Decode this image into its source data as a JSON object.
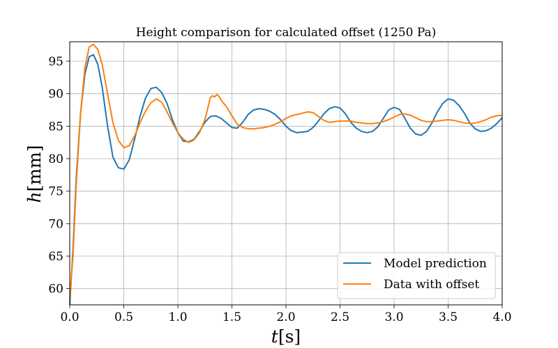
{
  "chart_data": {
    "type": "line",
    "title": "Height comparison for calculated offset (1250 Pa)",
    "xlabel": {
      "var": "t",
      "unit": "[s]"
    },
    "ylabel": {
      "var": "h",
      "unit": "[mm]"
    },
    "xlim": [
      0.0,
      4.0
    ],
    "ylim": [
      57.5,
      98.0
    ],
    "xticks": [
      0.0,
      0.5,
      1.0,
      1.5,
      2.0,
      2.5,
      3.0,
      3.5,
      4.0
    ],
    "xtick_labels": [
      "0.0",
      "0.5",
      "1.0",
      "1.5",
      "2.0",
      "2.5",
      "3.0",
      "3.5",
      "4.0"
    ],
    "yticks": [
      60,
      65,
      70,
      75,
      80,
      85,
      90,
      95
    ],
    "ytick_labels": [
      "60",
      "65",
      "70",
      "75",
      "80",
      "85",
      "90",
      "95"
    ],
    "grid": true,
    "legend_position": "bottom-right",
    "series": [
      {
        "name": "Model prediction",
        "color": "#1f77b4",
        "points": [
          [
            0.0,
            57.5
          ],
          [
            0.03,
            66
          ],
          [
            0.06,
            77
          ],
          [
            0.1,
            87
          ],
          [
            0.14,
            93
          ],
          [
            0.18,
            95.7
          ],
          [
            0.22,
            96.0
          ],
          [
            0.26,
            94.5
          ],
          [
            0.3,
            91
          ],
          [
            0.35,
            85
          ],
          [
            0.4,
            80.2
          ],
          [
            0.45,
            78.6
          ],
          [
            0.5,
            78.4
          ],
          [
            0.55,
            79.8
          ],
          [
            0.6,
            83
          ],
          [
            0.65,
            86.5
          ],
          [
            0.7,
            89.3
          ],
          [
            0.75,
            90.8
          ],
          [
            0.8,
            91.0
          ],
          [
            0.85,
            90.2
          ],
          [
            0.9,
            88.5
          ],
          [
            0.95,
            86.0
          ],
          [
            1.0,
            84.0
          ],
          [
            1.05,
            82.7
          ],
          [
            1.1,
            82.6
          ],
          [
            1.15,
            83.0
          ],
          [
            1.2,
            84.2
          ],
          [
            1.25,
            85.6
          ],
          [
            1.3,
            86.5
          ],
          [
            1.35,
            86.6
          ],
          [
            1.4,
            86.2
          ],
          [
            1.45,
            85.5
          ],
          [
            1.5,
            84.8
          ],
          [
            1.55,
            84.7
          ],
          [
            1.6,
            85.6
          ],
          [
            1.65,
            86.8
          ],
          [
            1.7,
            87.5
          ],
          [
            1.75,
            87.7
          ],
          [
            1.8,
            87.6
          ],
          [
            1.85,
            87.3
          ],
          [
            1.9,
            86.8
          ],
          [
            1.95,
            86.0
          ],
          [
            2.0,
            85.0
          ],
          [
            2.05,
            84.3
          ],
          [
            2.1,
            84.0
          ],
          [
            2.15,
            84.1
          ],
          [
            2.2,
            84.2
          ],
          [
            2.25,
            84.8
          ],
          [
            2.3,
            85.8
          ],
          [
            2.35,
            86.9
          ],
          [
            2.4,
            87.7
          ],
          [
            2.45,
            88.0
          ],
          [
            2.5,
            87.8
          ],
          [
            2.55,
            86.9
          ],
          [
            2.6,
            85.6
          ],
          [
            2.65,
            84.7
          ],
          [
            2.7,
            84.2
          ],
          [
            2.75,
            84.0
          ],
          [
            2.8,
            84.2
          ],
          [
            2.85,
            84.9
          ],
          [
            2.9,
            86.2
          ],
          [
            2.95,
            87.5
          ],
          [
            3.0,
            87.9
          ],
          [
            3.05,
            87.6
          ],
          [
            3.1,
            86.2
          ],
          [
            3.15,
            84.7
          ],
          [
            3.2,
            83.8
          ],
          [
            3.25,
            83.6
          ],
          [
            3.3,
            84.2
          ],
          [
            3.35,
            85.5
          ],
          [
            3.4,
            87.2
          ],
          [
            3.45,
            88.5
          ],
          [
            3.5,
            89.2
          ],
          [
            3.55,
            89.0
          ],
          [
            3.6,
            88.2
          ],
          [
            3.65,
            87.0
          ],
          [
            3.7,
            85.5
          ],
          [
            3.75,
            84.6
          ],
          [
            3.8,
            84.2
          ],
          [
            3.85,
            84.3
          ],
          [
            3.9,
            84.7
          ],
          [
            3.95,
            85.4
          ],
          [
            4.0,
            86.3
          ]
        ]
      },
      {
        "name": "Data with offset",
        "color": "#ff7f0e",
        "points": [
          [
            0.0,
            58.5
          ],
          [
            0.03,
            65
          ],
          [
            0.06,
            76
          ],
          [
            0.1,
            87
          ],
          [
            0.14,
            94
          ],
          [
            0.18,
            97.2
          ],
          [
            0.22,
            97.6
          ],
          [
            0.26,
            96.8
          ],
          [
            0.3,
            94.5
          ],
          [
            0.35,
            90
          ],
          [
            0.4,
            85.5
          ],
          [
            0.45,
            82.8
          ],
          [
            0.5,
            81.7
          ],
          [
            0.55,
            82.0
          ],
          [
            0.6,
            83.5
          ],
          [
            0.65,
            85.5
          ],
          [
            0.7,
            87.3
          ],
          [
            0.75,
            88.6
          ],
          [
            0.8,
            89.2
          ],
          [
            0.85,
            88.7
          ],
          [
            0.9,
            87.2
          ],
          [
            0.95,
            85.5
          ],
          [
            1.0,
            84.0
          ],
          [
            1.05,
            83.0
          ],
          [
            1.1,
            82.5
          ],
          [
            1.15,
            82.9
          ],
          [
            1.2,
            84.0
          ],
          [
            1.25,
            86.0
          ],
          [
            1.28,
            88.0
          ],
          [
            1.3,
            89.4
          ],
          [
            1.32,
            89.7
          ],
          [
            1.34,
            89.5
          ],
          [
            1.36,
            89.9
          ],
          [
            1.38,
            89.6
          ],
          [
            1.4,
            89.0
          ],
          [
            1.45,
            88.0
          ],
          [
            1.5,
            86.6
          ],
          [
            1.55,
            85.3
          ],
          [
            1.6,
            84.8
          ],
          [
            1.65,
            84.6
          ],
          [
            1.7,
            84.6
          ],
          [
            1.75,
            84.7
          ],
          [
            1.8,
            84.8
          ],
          [
            1.85,
            85.0
          ],
          [
            1.9,
            85.3
          ],
          [
            1.95,
            85.7
          ],
          [
            2.0,
            86.2
          ],
          [
            2.05,
            86.6
          ],
          [
            2.1,
            86.8
          ],
          [
            2.15,
            87.0
          ],
          [
            2.2,
            87.2
          ],
          [
            2.25,
            87.1
          ],
          [
            2.3,
            86.5
          ],
          [
            2.35,
            85.9
          ],
          [
            2.4,
            85.6
          ],
          [
            2.45,
            85.7
          ],
          [
            2.5,
            85.8
          ],
          [
            2.55,
            85.8
          ],
          [
            2.6,
            85.8
          ],
          [
            2.65,
            85.6
          ],
          [
            2.7,
            85.5
          ],
          [
            2.75,
            85.4
          ],
          [
            2.8,
            85.4
          ],
          [
            2.85,
            85.5
          ],
          [
            2.9,
            85.7
          ],
          [
            2.95,
            86.0
          ],
          [
            3.0,
            86.4
          ],
          [
            3.05,
            86.8
          ],
          [
            3.1,
            86.9
          ],
          [
            3.15,
            86.7
          ],
          [
            3.2,
            86.3
          ],
          [
            3.25,
            85.9
          ],
          [
            3.3,
            85.7
          ],
          [
            3.35,
            85.7
          ],
          [
            3.4,
            85.8
          ],
          [
            3.45,
            85.9
          ],
          [
            3.5,
            86.0
          ],
          [
            3.55,
            85.9
          ],
          [
            3.6,
            85.7
          ],
          [
            3.65,
            85.5
          ],
          [
            3.7,
            85.4
          ],
          [
            3.75,
            85.5
          ],
          [
            3.8,
            85.7
          ],
          [
            3.85,
            86.0
          ],
          [
            3.9,
            86.4
          ],
          [
            3.95,
            86.6
          ],
          [
            4.0,
            86.7
          ]
        ]
      }
    ]
  }
}
